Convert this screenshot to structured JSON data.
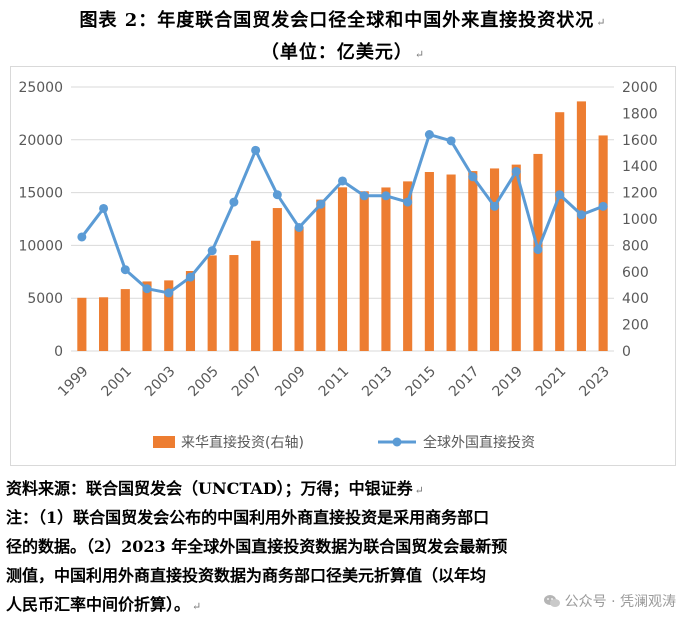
{
  "title_line1": "图表 2：年度联合国贸发会口径全球和中国外来直接投资状况",
  "title_line2": "（单位：亿美元）",
  "return_mark": "↵",
  "chart_data": {
    "type": "bar+line",
    "categories": [
      "1999",
      "2000",
      "2001",
      "2002",
      "2003",
      "2004",
      "2005",
      "2006",
      "2007",
      "2008",
      "2009",
      "2010",
      "2011",
      "2012",
      "2013",
      "2014",
      "2015",
      "2016",
      "2017",
      "2018",
      "2019",
      "2020",
      "2021",
      "2022",
      "2023"
    ],
    "x_tick_labels": [
      "1999",
      "2001",
      "2003",
      "2005",
      "2007",
      "2009",
      "2011",
      "2013",
      "2015",
      "2017",
      "2019",
      "2021",
      "2023"
    ],
    "left_axis": {
      "min": 0,
      "max": 25000,
      "ticks": [
        "0",
        "5000",
        "10000",
        "15000",
        "20000",
        "25000"
      ]
    },
    "right_axis": {
      "min": 0,
      "max": 2000,
      "ticks": [
        "0",
        "200",
        "400",
        "600",
        "800",
        "1000",
        "1200",
        "1400",
        "1600",
        "1800",
        "2000"
      ]
    },
    "grid": true,
    "legend_position": "bottom",
    "series": [
      {
        "name": "来华直接投资(右轴)",
        "type": "bar",
        "axis": "right",
        "color": "#ED7D31",
        "values": [
          403,
          407,
          469,
          527,
          535,
          606,
          724,
          727,
          835,
          1083,
          940,
          1147,
          1240,
          1210,
          1239,
          1285,
          1356,
          1337,
          1363,
          1383,
          1412,
          1493,
          1809,
          1891,
          1633
        ]
      },
      {
        "name": "全球外国直接投资",
        "type": "line",
        "axis": "left",
        "color": "#5B9BD5",
        "values": [
          10800,
          13500,
          7700,
          5900,
          5500,
          7000,
          9500,
          14100,
          19000,
          14800,
          11700,
          13900,
          16100,
          14700,
          14700,
          14100,
          20500,
          19900,
          16500,
          13700,
          17000,
          9600,
          14800,
          12900,
          13700
        ]
      }
    ]
  },
  "source_text": "资料来源：联合国贸发会（UNCTAD）；万得；中银证券",
  "note_lines": [
    "注：（1）联合国贸发会公布的中国利用外商直接投资是采用商务部口",
    "径的数据。（2）2023 年全球外国直接投资数据为联合国贸发会最新预",
    "测值，中国利用外商直接投资数据为商务部口径美元折算值（以年均",
    "人民币汇率中间价折算）。"
  ],
  "watermark": "公众号 · 凭澜观涛"
}
